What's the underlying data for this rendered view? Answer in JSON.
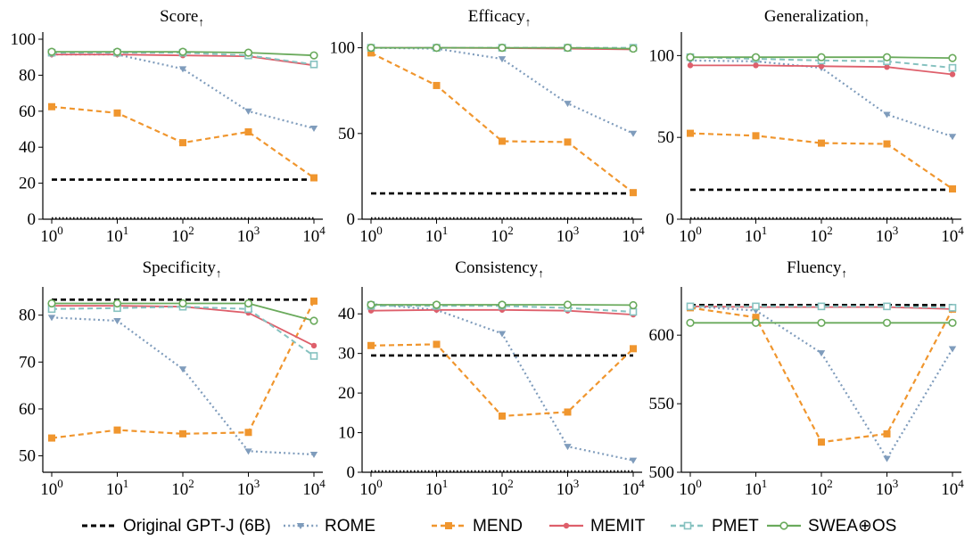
{
  "colors": {
    "original": "#000000",
    "rome": "#7f9cbc",
    "mend": "#f0962e",
    "memit": "#de5f6b",
    "pmet": "#86c2c0",
    "swea": "#6aaa5c"
  },
  "x_ticks": [
    {
      "base": "10",
      "exp": "0"
    },
    {
      "base": "10",
      "exp": "1"
    },
    {
      "base": "10",
      "exp": "2"
    },
    {
      "base": "10",
      "exp": "3"
    },
    {
      "base": "10",
      "exp": "4"
    }
  ],
  "legend": [
    {
      "key": "original",
      "label": "Original GPT-J (6B)"
    },
    {
      "key": "rome",
      "label": "ROME"
    },
    {
      "key": "mend",
      "label": "MEND"
    },
    {
      "key": "memit",
      "label": "MEMIT"
    },
    {
      "key": "pmet",
      "label": "PMET"
    },
    {
      "key": "swea",
      "label": "SWEA⊕OS"
    }
  ],
  "chart_data": [
    {
      "type": "line",
      "title": "Score",
      "title_arrow": "↑",
      "xscale": "log",
      "x": [
        1,
        10,
        100,
        1000,
        10000
      ],
      "ylim": [
        0,
        100
      ],
      "yticks": [
        0,
        20,
        40,
        60,
        80,
        100
      ],
      "series": [
        {
          "key": "original",
          "name": "Original GPT-J (6B)",
          "values": [
            22,
            22,
            22,
            22,
            22
          ]
        },
        {
          "key": "rome",
          "name": "ROME",
          "values": [
            91.5,
            91.5,
            83.5,
            60,
            50.5
          ]
        },
        {
          "key": "mend",
          "name": "MEND",
          "values": [
            62.5,
            59,
            42.5,
            48.5,
            23
          ]
        },
        {
          "key": "memit",
          "name": "MEMIT",
          "values": [
            91.5,
            91.5,
            91,
            90.5,
            85.5
          ]
        },
        {
          "key": "pmet",
          "name": "PMET",
          "values": [
            92.5,
            92.5,
            92.5,
            91,
            86
          ]
        },
        {
          "key": "swea",
          "name": "SWEA⊕OS",
          "values": [
            93,
            93,
            93,
            92.5,
            91
          ]
        }
      ]
    },
    {
      "type": "line",
      "title": "Efficacy",
      "title_arrow": "↑",
      "xscale": "log",
      "x": [
        1,
        10,
        100,
        1000,
        10000
      ],
      "ylim": [
        0,
        105
      ],
      "yticks": [
        0,
        50,
        100
      ],
      "series": [
        {
          "key": "original",
          "name": "Original GPT-J (6B)",
          "values": [
            15,
            15,
            15,
            15,
            15
          ]
        },
        {
          "key": "rome",
          "name": "ROME",
          "values": [
            100,
            99.5,
            93.5,
            67.5,
            50
          ]
        },
        {
          "key": "mend",
          "name": "MEND",
          "values": [
            97,
            78,
            45.5,
            45,
            15.5
          ]
        },
        {
          "key": "memit",
          "name": "MEMIT",
          "values": [
            100,
            100,
            99.8,
            99.5,
            99
          ]
        },
        {
          "key": "pmet",
          "name": "PMET",
          "values": [
            100,
            100,
            100,
            100,
            100
          ]
        },
        {
          "key": "swea",
          "name": "SWEA⊕OS",
          "values": [
            100,
            100,
            100,
            100,
            99.5
          ]
        }
      ]
    },
    {
      "type": "line",
      "title": "Generalization",
      "title_arrow": "↑",
      "xscale": "log",
      "x": [
        1,
        10,
        100,
        1000,
        10000
      ],
      "ylim": [
        0,
        110
      ],
      "yticks": [
        0,
        50,
        100
      ],
      "series": [
        {
          "key": "original",
          "name": "Original GPT-J (6B)",
          "values": [
            18,
            18,
            18,
            18,
            18
          ]
        },
        {
          "key": "rome",
          "name": "ROME",
          "values": [
            97,
            96.5,
            92.5,
            64,
            50.5
          ]
        },
        {
          "key": "mend",
          "name": "MEND",
          "values": [
            52.5,
            51,
            46.5,
            46,
            18.5
          ]
        },
        {
          "key": "memit",
          "name": "MEMIT",
          "values": [
            94,
            94,
            93.5,
            93,
            88.5
          ]
        },
        {
          "key": "pmet",
          "name": "PMET",
          "values": [
            99,
            98,
            97,
            96.5,
            92.5
          ]
        },
        {
          "key": "swea",
          "name": "SWEA⊕OS",
          "values": [
            99,
            99,
            99,
            99,
            98.5
          ]
        }
      ]
    },
    {
      "type": "line",
      "title": "Specificity",
      "title_arrow": "↑",
      "xscale": "log",
      "x": [
        1,
        10,
        100,
        1000,
        10000
      ],
      "ylim": [
        46.5,
        84.5
      ],
      "yticks": [
        50,
        60,
        70,
        80
      ],
      "series": [
        {
          "key": "original",
          "name": "Original GPT-J (6B)",
          "values": [
            83.3,
            83.3,
            83.3,
            83.3,
            83.3
          ]
        },
        {
          "key": "rome",
          "name": "ROME",
          "values": [
            79.5,
            78.8,
            68.5,
            51,
            50.3
          ]
        },
        {
          "key": "mend",
          "name": "MEND",
          "values": [
            53.8,
            55.5,
            54.7,
            55,
            83
          ]
        },
        {
          "key": "memit",
          "name": "MEMIT",
          "values": [
            82,
            82,
            81.8,
            80.5,
            73.5
          ]
        },
        {
          "key": "pmet",
          "name": "PMET",
          "values": [
            81.3,
            81.5,
            81.8,
            81.3,
            71.3
          ]
        },
        {
          "key": "swea",
          "name": "SWEA⊕OS",
          "values": [
            82.5,
            82.5,
            82.5,
            82.5,
            78.8
          ]
        }
      ]
    },
    {
      "type": "line",
      "title": "Consistency",
      "title_arrow": "↑",
      "xscale": "log",
      "x": [
        1,
        10,
        100,
        1000,
        10000
      ],
      "ylim": [
        0,
        45
      ],
      "yticks": [
        0,
        10,
        20,
        30,
        40
      ],
      "series": [
        {
          "key": "original",
          "name": "Original GPT-J (6B)",
          "values": [
            29.5,
            29.5,
            29.5,
            29.5,
            29.5
          ]
        },
        {
          "key": "rome",
          "name": "ROME",
          "values": [
            42.5,
            41,
            35,
            6.5,
            3
          ]
        },
        {
          "key": "mend",
          "name": "MEND",
          "values": [
            32,
            32.3,
            14.2,
            15.2,
            31.2
          ]
        },
        {
          "key": "memit",
          "name": "MEMIT",
          "values": [
            40.8,
            41,
            41,
            40.8,
            39.8
          ]
        },
        {
          "key": "pmet",
          "name": "PMET",
          "values": [
            42,
            42,
            42,
            41.5,
            40.5
          ]
        },
        {
          "key": "swea",
          "name": "SWEA⊕OS",
          "values": [
            42.3,
            42.3,
            42.3,
            42.3,
            42.2
          ]
        }
      ]
    },
    {
      "type": "line",
      "title": "Fluency",
      "title_arrow": "↑",
      "xscale": "log",
      "x": [
        1,
        10,
        100,
        1000,
        10000
      ],
      "ylim": [
        500,
        630
      ],
      "yticks": [
        500,
        550,
        600
      ],
      "series": [
        {
          "key": "original",
          "name": "Original GPT-J (6B)",
          "values": [
            622,
            622,
            622,
            622,
            622
          ]
        },
        {
          "key": "rome",
          "name": "ROME",
          "values": [
            621,
            618,
            587,
            510,
            590
          ]
        },
        {
          "key": "mend",
          "name": "MEND",
          "values": [
            620,
            613,
            522,
            528,
            619
          ]
        },
        {
          "key": "memit",
          "name": "MEMIT",
          "values": [
            621,
            620.5,
            620.5,
            620.5,
            619
          ]
        },
        {
          "key": "pmet",
          "name": "PMET",
          "values": [
            621,
            621,
            621,
            621,
            620
          ]
        },
        {
          "key": "swea",
          "name": "SWEA⊕OS",
          "values": [
            609,
            609,
            609,
            609,
            609
          ]
        }
      ]
    }
  ]
}
